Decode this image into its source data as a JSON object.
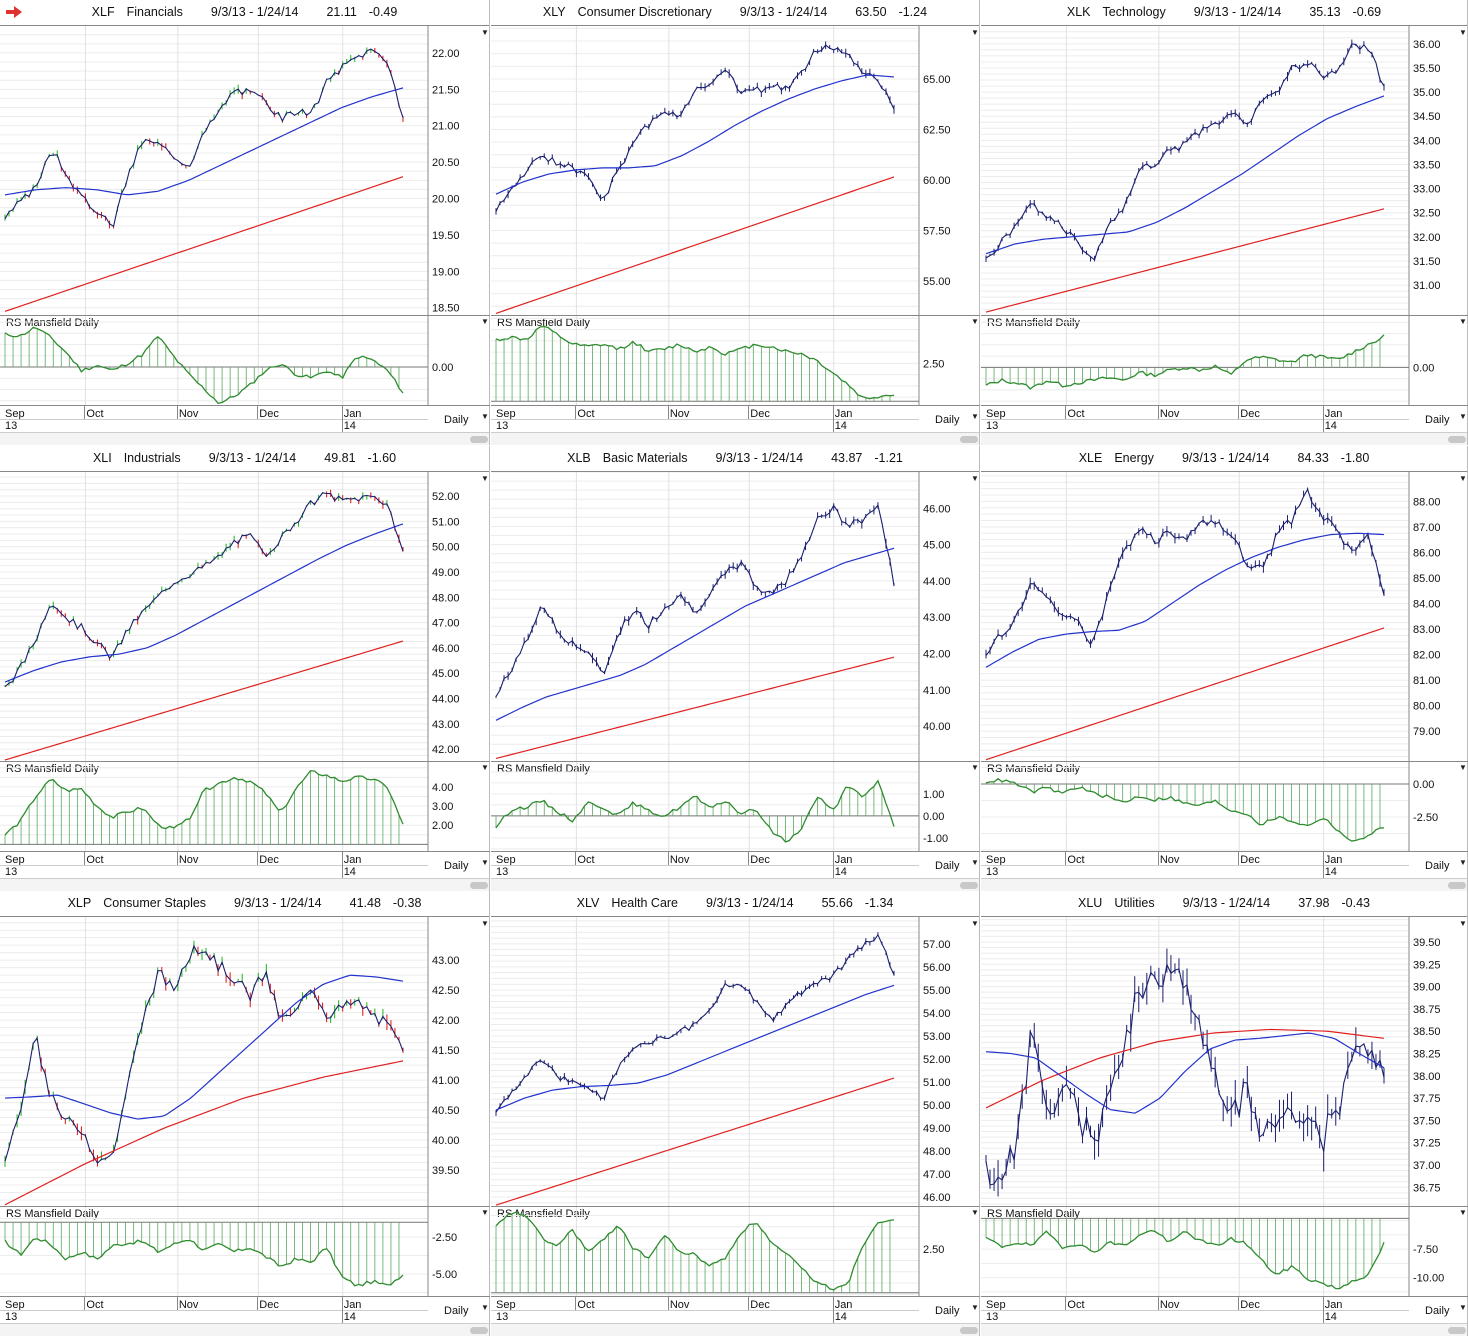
{
  "date_axis": {
    "months": [
      "Sep",
      "Oct",
      "Nov",
      "Dec",
      "Jan"
    ],
    "years": [
      "13",
      "14"
    ],
    "period_label": "Daily"
  },
  "indicator_label": "RS Mansfield Daily",
  "colors": {
    "price_line": "#1a1f6e",
    "up_bar": "#1db31d",
    "down_bar": "#e01010",
    "ma50": "#2233cc",
    "ma200": "#e02020",
    "rs_line": "#2e8b2e",
    "rs_hatch": "#5aa85a",
    "arrow": "#e03030"
  },
  "icons": [
    "red-arrow-icon",
    "dropdown-triangle-icon"
  ],
  "chart_data": [
    {
      "type": "line",
      "ticker": "XLF",
      "name": "Financials",
      "range": "9/3/13 - 1/24/14",
      "last": "21.11",
      "change": "-0.49",
      "bar_colors": true,
      "yticks": [
        "22.00",
        "21.50",
        "21.00",
        "20.50",
        "20.00",
        "19.50",
        "19.00",
        "18.50"
      ],
      "ylim": [
        18.4,
        22.37
      ],
      "close": [
        19.75,
        19.95,
        20.15,
        20.7,
        20.35,
        20.0,
        19.85,
        19.6,
        20.3,
        20.8,
        20.75,
        20.6,
        20.45,
        20.9,
        21.2,
        21.5,
        21.45,
        21.35,
        21.1,
        21.2,
        21.15,
        21.6,
        21.8,
        21.95,
        22.05,
        21.9,
        21.11
      ],
      "ma50": [
        20.05,
        20.12,
        20.15,
        20.12,
        20.05,
        20.1,
        20.25,
        20.45,
        20.65,
        20.85,
        21.05,
        21.25,
        21.4,
        21.52
      ],
      "ma200": [
        18.45,
        20.3
      ],
      "rs_ticks": [
        "0.00"
      ],
      "rs_ylim": [
        -1.07,
        1.4
      ],
      "rs_baseline": 0,
      "rs": [
        0.9,
        0.85,
        1.1,
        0.8,
        0.4,
        -0.1,
        0.05,
        -0.1,
        0.1,
        0.35,
        0.85,
        0.3,
        -0.2,
        -0.6,
        -1.0,
        -0.8,
        -0.5,
        -0.1,
        0.1,
        -0.2,
        -0.3,
        -0.1,
        -0.3,
        0.3,
        0.2,
        -0.1,
        -0.7
      ]
    },
    {
      "type": "line",
      "ticker": "XLY",
      "name": "Consumer Discretionary",
      "range": "9/3/13 - 1/24/14",
      "last": "63.50",
      "change": "-1.24",
      "bar_colors": false,
      "yticks": [
        "65.00",
        "62.50",
        "60.00",
        "57.50",
        "55.00"
      ],
      "ylim": [
        53.32,
        67.62
      ],
      "close": [
        58.6,
        59.5,
        60.4,
        61.3,
        60.8,
        60.6,
        60.3,
        59.0,
        60.5,
        61.8,
        62.8,
        63.5,
        63.0,
        64.5,
        64.8,
        65.6,
        64.3,
        64.4,
        64.7,
        64.5,
        65.3,
        66.5,
        66.6,
        66.2,
        65.3,
        65.0,
        63.5
      ],
      "ma50": [
        59.3,
        59.9,
        60.3,
        60.5,
        60.6,
        60.6,
        60.7,
        61.2,
        61.9,
        62.7,
        63.4,
        64.0,
        64.5,
        64.9,
        65.2,
        65.1
      ],
      "ma200": [
        53.4,
        60.15
      ],
      "rs_ticks": [
        "2.50"
      ],
      "rs_ylim": [
        1.6,
        3.5
      ],
      "rs_baseline": 1.7,
      "rs": [
        3.0,
        3.05,
        3.0,
        3.3,
        3.1,
        2.9,
        2.85,
        2.9,
        2.8,
        2.95,
        2.75,
        2.8,
        2.9,
        2.75,
        2.85,
        2.7,
        2.8,
        2.9,
        2.85,
        2.75,
        2.7,
        2.55,
        2.3,
        2.05,
        1.75,
        1.8,
        1.85
      ]
    },
    {
      "type": "line",
      "ticker": "XLK",
      "name": "Technology",
      "range": "9/3/13 - 1/24/14",
      "last": "35.13",
      "change": "-0.69",
      "bar_colors": false,
      "yticks": [
        "36.00",
        "35.50",
        "35.00",
        "34.50",
        "34.00",
        "33.50",
        "33.00",
        "32.50",
        "32.00",
        "31.50",
        "31.00"
      ],
      "ylim": [
        30.38,
        36.37
      ],
      "close": [
        31.5,
        31.9,
        32.2,
        32.7,
        32.4,
        32.2,
        31.9,
        31.5,
        32.3,
        32.6,
        33.4,
        33.5,
        33.8,
        33.9,
        34.2,
        34.3,
        34.6,
        34.3,
        34.8,
        35.0,
        35.5,
        35.6,
        35.3,
        35.4,
        36.0,
        35.9,
        35.13
      ],
      "ma50": [
        31.65,
        31.85,
        31.95,
        32.0,
        32.05,
        32.1,
        32.3,
        32.6,
        32.95,
        33.3,
        33.7,
        34.1,
        34.45,
        34.7,
        34.92
      ],
      "ma200": [
        30.44,
        32.58
      ],
      "rs_ticks": [
        "0.00"
      ],
      "rs_ylim": [
        -1.5,
        2.0
      ],
      "rs_baseline": 0,
      "rs": [
        -0.7,
        -0.5,
        -0.6,
        -0.8,
        -0.5,
        -0.7,
        -0.6,
        -0.5,
        -0.4,
        -0.5,
        -0.2,
        -0.3,
        -0.1,
        0.0,
        -0.1,
        0.05,
        -0.3,
        0.3,
        0.4,
        0.3,
        0.2,
        0.5,
        0.4,
        0.3,
        0.6,
        0.9,
        1.2
      ]
    },
    {
      "type": "line",
      "ticker": "XLI",
      "name": "Industrials",
      "range": "9/3/13 - 1/24/14",
      "last": "49.81",
      "change": "-1.60",
      "bar_colors": true,
      "yticks": [
        "52.00",
        "51.00",
        "50.00",
        "49.00",
        "48.00",
        "47.00",
        "46.00",
        "45.00",
        "44.00",
        "43.00",
        "42.00"
      ],
      "ylim": [
        41.53,
        52.95
      ],
      "close": [
        44.4,
        45.2,
        46.3,
        47.9,
        47.2,
        46.8,
        46.2,
        45.6,
        46.7,
        47.4,
        48.0,
        48.6,
        48.9,
        49.2,
        49.6,
        50.2,
        50.4,
        49.7,
        50.3,
        51.0,
        51.7,
        52.1,
        51.8,
        51.9,
        52.0,
        51.7,
        49.81
      ],
      "ma50": [
        44.65,
        45.1,
        45.45,
        45.65,
        45.75,
        46.0,
        46.5,
        47.1,
        47.7,
        48.3,
        48.9,
        49.5,
        50.05,
        50.5,
        50.9
      ],
      "ma200": [
        41.57,
        46.27
      ],
      "rs_ticks": [
        "4.00",
        "3.00",
        "2.00"
      ],
      "rs_ylim": [
        0.6,
        5.3
      ],
      "rs_baseline": 1.0,
      "rs": [
        1.5,
        2.2,
        3.5,
        4.4,
        3.8,
        3.9,
        3.0,
        2.4,
        2.7,
        2.9,
        2.0,
        1.8,
        2.3,
        3.8,
        4.2,
        4.5,
        4.3,
        3.7,
        2.6,
        3.9,
        4.8,
        4.6,
        4.3,
        4.5,
        4.4,
        4.0,
        2.0
      ]
    },
    {
      "type": "line",
      "ticker": "XLB",
      "name": "Basic Materials",
      "range": "9/3/13 - 1/24/14",
      "last": "43.87",
      "change": "-1.21",
      "bar_colors": false,
      "yticks": [
        "46.00",
        "45.00",
        "44.00",
        "43.00",
        "42.00",
        "41.00",
        "40.00"
      ],
      "ylim": [
        39.04,
        47.0
      ],
      "close": [
        40.8,
        41.6,
        42.3,
        43.4,
        42.6,
        42.3,
        42.0,
        41.4,
        42.6,
        43.2,
        42.8,
        43.3,
        43.6,
        43.2,
        43.6,
        44.2,
        44.5,
        43.8,
        43.7,
        44.0,
        44.8,
        45.7,
        46.0,
        45.5,
        45.7,
        46.1,
        43.87
      ],
      "ma50": [
        40.16,
        40.5,
        40.8,
        41.0,
        41.2,
        41.4,
        41.7,
        42.1,
        42.5,
        42.9,
        43.3,
        43.6,
        43.9,
        44.2,
        44.5,
        44.7,
        44.9
      ],
      "ma200": [
        39.11,
        41.9
      ],
      "rs_ticks": [
        "1.00",
        "0.00",
        "-1.00"
      ],
      "rs_ylim": [
        -1.64,
        2.45
      ],
      "rs_baseline": 0,
      "rs": [
        -0.5,
        0.3,
        0.4,
        0.7,
        0.2,
        -0.2,
        0.6,
        0.4,
        0.0,
        0.6,
        0.2,
        0.0,
        0.4,
        0.9,
        0.3,
        0.7,
        0.1,
        0.3,
        -0.7,
        -1.2,
        -0.5,
        0.9,
        0.2,
        1.4,
        0.8,
        1.6,
        -0.5
      ]
    },
    {
      "type": "line",
      "ticker": "XLE",
      "name": "Energy",
      "range": "9/3/13 - 1/24/14",
      "last": "84.33",
      "change": "-1.80",
      "bar_colors": false,
      "yticks": [
        "88.00",
        "87.00",
        "86.00",
        "85.00",
        "84.00",
        "83.00",
        "82.00",
        "81.00",
        "80.00",
        "79.00"
      ],
      "ylim": [
        77.83,
        89.15
      ],
      "close": [
        82.0,
        82.8,
        83.5,
        84.8,
        84.2,
        83.6,
        83.2,
        82.4,
        84.3,
        86.0,
        86.9,
        86.4,
        86.8,
        86.5,
        87.3,
        87.2,
        86.7,
        85.6,
        85.3,
        86.6,
        87.3,
        88.3,
        87.4,
        86.8,
        85.9,
        86.7,
        84.33
      ],
      "ma50": [
        81.5,
        82.1,
        82.6,
        82.8,
        82.9,
        82.95,
        83.3,
        84.0,
        84.7,
        85.3,
        85.8,
        86.2,
        86.5,
        86.7,
        86.75,
        86.7
      ],
      "ma200": [
        77.88,
        83.04
      ],
      "rs_ticks": [
        "0.00",
        "-2.50"
      ],
      "rs_ylim": [
        -5.15,
        1.67
      ],
      "rs_baseline": 0,
      "rs": [
        0.2,
        0.3,
        0.0,
        -0.6,
        -0.3,
        -0.7,
        -0.2,
        -0.7,
        -1.0,
        -1.4,
        -0.9,
        -1.2,
        -1.0,
        -1.5,
        -1.6,
        -1.3,
        -2.0,
        -2.2,
        -3.1,
        -2.5,
        -2.8,
        -3.2,
        -2.5,
        -3.5,
        -4.5,
        -3.8,
        -3.3
      ]
    },
    {
      "type": "line",
      "ticker": "XLP",
      "name": "Consumer Staples",
      "range": "9/3/13 - 1/24/14",
      "last": "41.48",
      "change": "-0.38",
      "bar_colors": true,
      "yticks": [
        "43.00",
        "42.50",
        "42.00",
        "41.50",
        "41.00",
        "40.50",
        "40.00",
        "39.50"
      ],
      "ylim": [
        38.9,
        43.72
      ],
      "close": [
        39.7,
        40.5,
        41.7,
        40.7,
        40.3,
        40.2,
        39.7,
        39.7,
        40.9,
        42.0,
        42.8,
        42.5,
        43.1,
        43.2,
        42.9,
        42.7,
        42.4,
        42.8,
        42.0,
        42.1,
        42.6,
        42.1,
        42.2,
        42.3,
        42.1,
        41.9,
        41.48
      ],
      "ma50": [
        40.7,
        40.72,
        40.75,
        40.6,
        40.45,
        40.35,
        40.4,
        40.7,
        41.1,
        41.5,
        41.9,
        42.3,
        42.6,
        42.75,
        42.72,
        42.65
      ],
      "ma200": [
        38.92,
        39.6,
        40.2,
        40.7,
        41.05,
        41.32
      ],
      "rs_ticks": [
        "-2.50",
        "-5.00"
      ],
      "rs_ylim": [
        -6.55,
        -0.47
      ],
      "rs_baseline": -1.5,
      "rs": [
        -2.8,
        -3.7,
        -2.5,
        -3.0,
        -4.0,
        -3.5,
        -4.0,
        -3.1,
        -2.9,
        -2.8,
        -3.5,
        -3.0,
        -2.6,
        -3.4,
        -3.0,
        -3.5,
        -3.2,
        -3.8,
        -4.5,
        -4.0,
        -4.2,
        -3.2,
        -5.2,
        -5.8,
        -5.5,
        -5.8,
        -5.0
      ]
    },
    {
      "type": "line",
      "ticker": "XLV",
      "name": "Health Care",
      "range": "9/3/13 - 1/24/14",
      "last": "55.66",
      "change": "-1.34",
      "bar_colors": false,
      "yticks": [
        "57.00",
        "56.00",
        "55.00",
        "54.00",
        "53.00",
        "52.00",
        "51.00",
        "50.00",
        "49.00",
        "48.00",
        "47.00",
        "46.00"
      ],
      "ylim": [
        45.61,
        58.17
      ],
      "close": [
        49.8,
        50.6,
        51.3,
        52.0,
        51.2,
        51.0,
        50.8,
        50.3,
        51.7,
        52.4,
        52.8,
        52.9,
        53.2,
        53.5,
        54.1,
        55.2,
        55.1,
        54.6,
        53.7,
        54.4,
        54.9,
        55.3,
        55.6,
        56.3,
        57.0,
        57.3,
        55.66
      ],
      "ma50": [
        49.78,
        50.3,
        50.65,
        50.8,
        50.85,
        50.95,
        51.3,
        51.8,
        52.3,
        52.8,
        53.3,
        53.8,
        54.3,
        54.8,
        55.2
      ],
      "ma200": [
        45.65,
        51.17
      ],
      "rs_ticks": [
        "2.50"
      ],
      "rs_ylim": [
        0.8,
        4.0
      ],
      "rs_baseline": 0.95,
      "rs": [
        3.3,
        3.8,
        3.7,
        2.9,
        2.6,
        3.2,
        2.4,
        2.8,
        3.4,
        2.5,
        2.2,
        3.0,
        2.4,
        2.3,
        1.9,
        2.2,
        3.1,
        3.5,
        2.7,
        2.3,
        1.8,
        1.3,
        1.1,
        1.3,
        2.7,
        3.5,
        3.6
      ]
    },
    {
      "type": "line",
      "ticker": "XLU",
      "name": "Utilities",
      "range": "9/3/13 - 1/24/14",
      "last": "37.98",
      "change": "-0.43",
      "bar_colors": false,
      "yticks": [
        "39.50",
        "39.25",
        "39.00",
        "38.75",
        "38.50",
        "38.25",
        "38.00",
        "37.75",
        "37.50",
        "37.25",
        "37.00",
        "36.75"
      ],
      "ylim": [
        36.54,
        39.78
      ],
      "close": [
        36.9,
        36.8,
        37.3,
        38.5,
        37.5,
        37.9,
        37.6,
        37.2,
        37.8,
        38.3,
        39.0,
        39.1,
        39.2,
        39.0,
        38.6,
        38.0,
        37.6,
        37.8,
        37.4,
        37.5,
        37.7,
        37.5,
        37.3,
        37.6,
        38.2,
        38.4,
        37.98
      ],
      "ma50": [
        38.27,
        38.25,
        38.2,
        38.0,
        37.8,
        37.62,
        37.58,
        37.75,
        38.05,
        38.3,
        38.4,
        38.42,
        38.45,
        38.48,
        38.42,
        38.25,
        38.09
      ],
      "ma200": [
        37.64,
        37.95,
        38.2,
        38.38,
        38.48,
        38.52,
        38.5,
        38.42
      ],
      "rs_ticks": [
        "-7.50",
        "-10.00"
      ],
      "rs_ylim": [
        -11.7,
        -3.8
      ],
      "rs_baseline": -4.8,
      "rs": [
        -6.5,
        -7.3,
        -6.9,
        -7.2,
        -6.0,
        -7.3,
        -7.0,
        -7.8,
        -6.9,
        -7.2,
        -6.3,
        -5.8,
        -7.0,
        -5.9,
        -6.8,
        -7.2,
        -6.6,
        -7.0,
        -8.5,
        -9.8,
        -9.0,
        -10.1,
        -10.5,
        -11.0,
        -10.2,
        -9.8,
        -7.0
      ]
    }
  ]
}
